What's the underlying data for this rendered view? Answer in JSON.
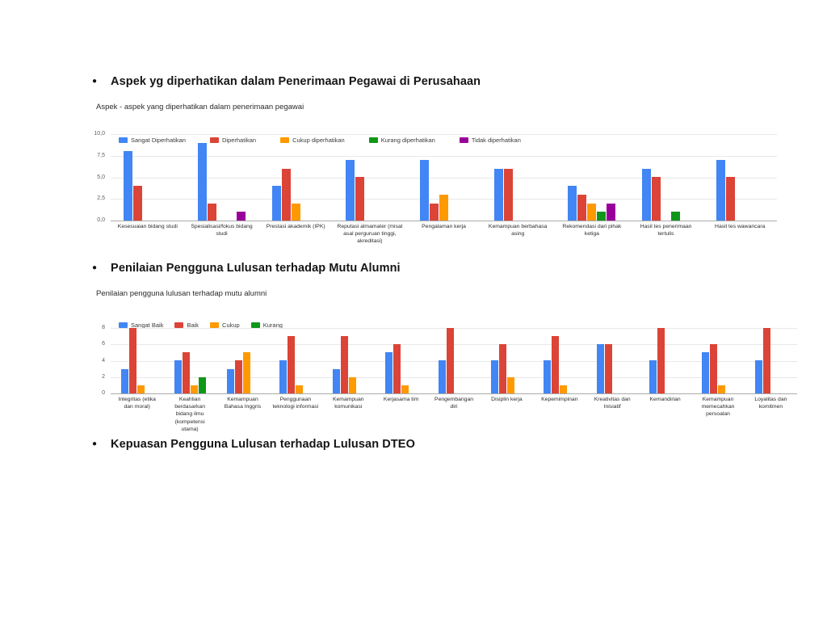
{
  "page": {
    "bullets": [
      {
        "label": "Aspek yg diperhatikan dalam Penerimaan Pegawai di Perusahaan"
      },
      {
        "label": "Penilaian Pengguna Lulusan terhadap Mutu Alumni"
      },
      {
        "label": "Kepuasan Pengguna Lulusan terhadap Lulusan DTEO"
      }
    ]
  },
  "chart_data": [
    {
      "type": "bar",
      "title": "Aspek - aspek yang diperhatikan dalam penerimaan pegawai",
      "xlabel": "",
      "ylabel": "",
      "ylim": [
        0,
        10
      ],
      "grid": true,
      "legend_position": "top-left-inside",
      "yticks": [
        {
          "label": "10,0",
          "value": 10
        },
        {
          "label": "7,5",
          "value": 7.5
        },
        {
          "label": "5,0",
          "value": 5
        },
        {
          "label": "2,5",
          "value": 2.5
        },
        {
          "label": "0,0",
          "value": 0
        }
      ],
      "categories": [
        "Kesesuaian bidang studi",
        "Spesialisasi/fokus bidang studi",
        "Prestasi akademik (IPK)",
        "Reputasi almamater (misal asal perguruan tinggi, akreditasi)",
        "Pengalaman kerja",
        "Kemampuan berbahasa asing",
        "Rekomendasi dari pihak ketiga",
        "Hasil tes penerimaan tertulis",
        "Hasil tes wawancara"
      ],
      "series": [
        {
          "name": "Sangat Diperhatikan",
          "color": "#4285F4",
          "values": [
            8,
            9,
            4,
            7,
            7,
            6,
            4,
            6,
            7
          ]
        },
        {
          "name": "Diperhatikan",
          "color": "#DB4437",
          "values": [
            4,
            2,
            6,
            5,
            2,
            6,
            3,
            5,
            5
          ]
        },
        {
          "name": "Cukup diperhatikan",
          "color": "#FF9900",
          "values": [
            0,
            0,
            2,
            0,
            3,
            0,
            2,
            0,
            0
          ]
        },
        {
          "name": "Kurang diperhatikan",
          "color": "#109618",
          "values": [
            0,
            0,
            0,
            0,
            0,
            0,
            1,
            1,
            0
          ]
        },
        {
          "name": "Tidak diperhatikan",
          "color": "#990099",
          "values": [
            0,
            1,
            0,
            0,
            0,
            0,
            2,
            0,
            0
          ]
        }
      ]
    },
    {
      "type": "bar",
      "title": "Penilaian pengguna lulusan terhadap mutu alumni",
      "xlabel": "",
      "ylabel": "",
      "ylim": [
        0,
        8
      ],
      "grid": true,
      "legend_position": "top-left-inside",
      "yticks": [
        {
          "label": "8",
          "value": 8
        },
        {
          "label": "6",
          "value": 6
        },
        {
          "label": "4",
          "value": 4
        },
        {
          "label": "2",
          "value": 2
        },
        {
          "label": "0",
          "value": 0
        }
      ],
      "categories": [
        "Integritas (etika dan moral)",
        "Keahlian berdasarkan bidang ilmu (kompetensi utama)",
        "Kemampuan Bahasa Inggris",
        "Penggunaan teknologi informasi",
        "Kemampuan komunikasi",
        "Kerjasama tim",
        "Pengembangan diri",
        "Disiplin kerja",
        "Kepemimpinan",
        "Kreativitas dan Inisiatif",
        "Kemandirian",
        "Kemampuan memecahkan persoalan",
        "Loyalitas dan komitmen"
      ],
      "series": [
        {
          "name": "Sangat Baik",
          "color": "#4285F4",
          "values": [
            3,
            4,
            3,
            4,
            3,
            5,
            4,
            4,
            4,
            6,
            4,
            5,
            4
          ]
        },
        {
          "name": "Baik",
          "color": "#DB4437",
          "values": [
            8,
            5,
            4,
            7,
            7,
            6,
            8,
            6,
            7,
            6,
            8,
            6,
            8
          ]
        },
        {
          "name": "Cukup",
          "color": "#FF9900",
          "values": [
            1,
            1,
            5,
            1,
            2,
            1,
            0,
            2,
            1,
            0,
            0,
            1,
            0
          ]
        },
        {
          "name": "Kurang",
          "color": "#109618",
          "values": [
            0,
            2,
            0,
            0,
            0,
            0,
            0,
            0,
            0,
            0,
            0,
            0,
            0
          ]
        }
      ]
    }
  ]
}
